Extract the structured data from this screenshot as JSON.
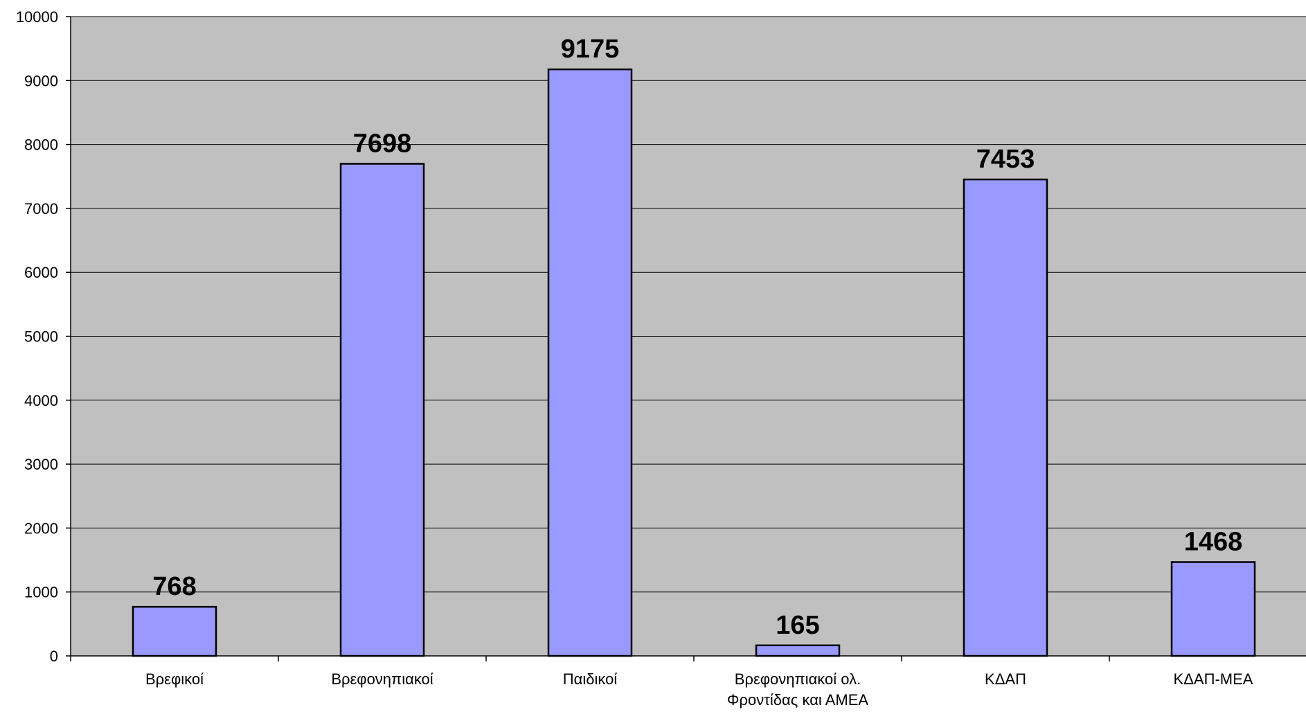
{
  "chart_data": {
    "type": "bar",
    "title": "",
    "xlabel": "",
    "ylabel": "",
    "categories": [
      [
        "Βρεφικοί"
      ],
      [
        "Βρεφονηπιακοί"
      ],
      [
        "Παιδικοί"
      ],
      [
        "Βρεφονηπιακοί ολ.",
        "Φροντίδας και ΑΜΕΑ"
      ],
      [
        "ΚΔΑΠ"
      ],
      [
        "ΚΔΑΠ-ΜΕΑ"
      ]
    ],
    "values": [
      768,
      7698,
      9175,
      165,
      7453,
      1468
    ],
    "ylim": [
      0,
      10000
    ],
    "yticks": [
      0,
      1000,
      2000,
      3000,
      4000,
      5000,
      6000,
      7000,
      8000,
      9000,
      10000
    ],
    "grid": true,
    "legend": "none",
    "colors": {
      "plot_background": "#c0c0c0",
      "bar_fill": "#9999ff",
      "bar_stroke": "#000000",
      "grid": "#000000"
    }
  }
}
